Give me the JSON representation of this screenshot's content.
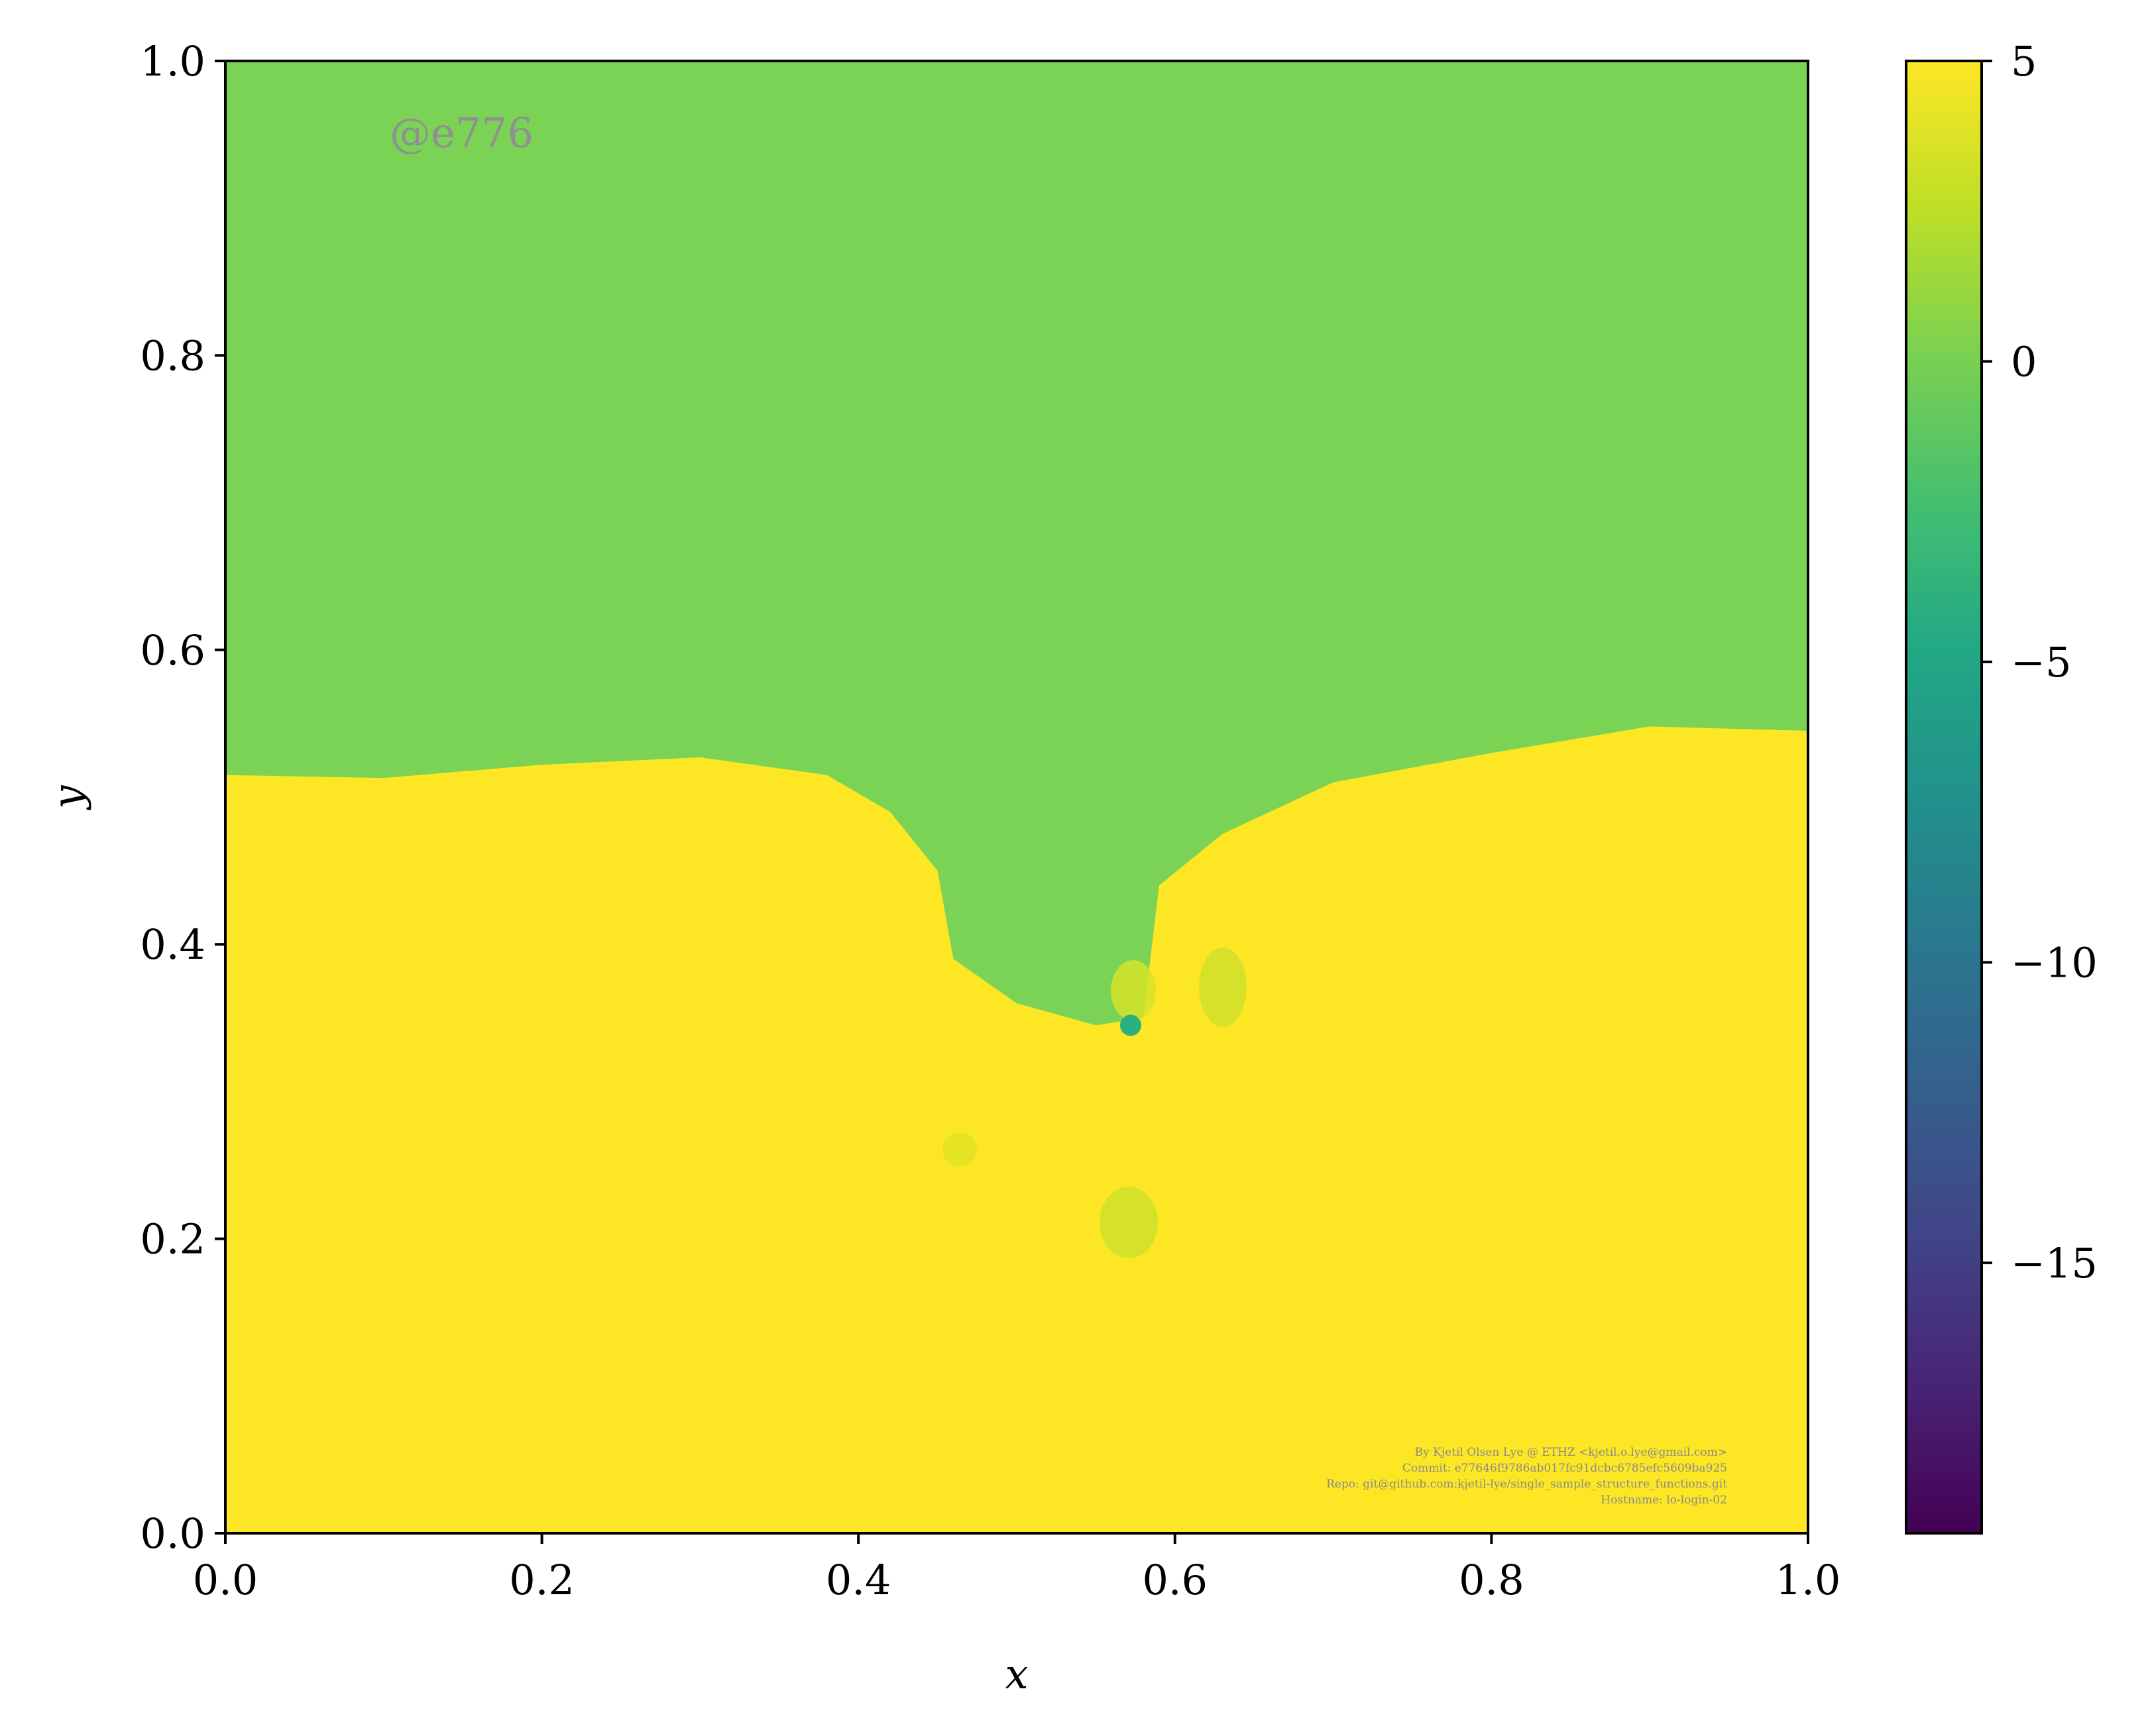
{
  "chart_data": {
    "type": "heatmap",
    "title": "",
    "xlabel": "x",
    "ylabel": "y",
    "xlim": [
      0.0,
      1.0
    ],
    "ylim": [
      0.0,
      1.0
    ],
    "x_ticks": [
      "0.0",
      "0.2",
      "0.4",
      "0.6",
      "0.8",
      "1.0"
    ],
    "y_ticks": [
      "0.0",
      "0.2",
      "0.4",
      "0.6",
      "0.8",
      "1.0"
    ],
    "colormap": "viridis",
    "colorbar": {
      "range": [
        -19.5,
        5
      ],
      "ticks": [
        5,
        0,
        -5,
        -10,
        -15
      ],
      "tick_labels": [
        "5",
        "0",
        "−5",
        "−10",
        "−15"
      ]
    },
    "field": {
      "upper_region_value": 1,
      "lower_region_value": 5,
      "interface_y_at_x": [
        [
          0.0,
          0.515
        ],
        [
          0.1,
          0.513
        ],
        [
          0.2,
          0.522
        ],
        [
          0.3,
          0.527
        ],
        [
          0.38,
          0.515
        ],
        [
          0.42,
          0.49
        ],
        [
          0.45,
          0.45
        ],
        [
          0.46,
          0.39
        ],
        [
          0.5,
          0.36
        ],
        [
          0.55,
          0.345
        ],
        [
          0.58,
          0.35
        ],
        [
          0.59,
          0.44
        ],
        [
          0.63,
          0.475
        ],
        [
          0.7,
          0.51
        ],
        [
          0.8,
          0.53
        ],
        [
          0.9,
          0.548
        ],
        [
          1.0,
          0.545
        ]
      ],
      "minimum_spot": {
        "x": 0.572,
        "y": 0.345,
        "value": -3
      }
    },
    "grid": false
  },
  "watermark": "@e776",
  "credits": [
    "By Kjetil Olsen Lye @ ETHZ <kjetil.o.lye@gmail.com>",
    "Commit: e77646f9786ab017fc91dcbc6785efc5609ba925",
    "Repo: git@github.com:kjetil-lye/single_sample_structure_functions.git",
    "Hostname: lo-login-02"
  ]
}
